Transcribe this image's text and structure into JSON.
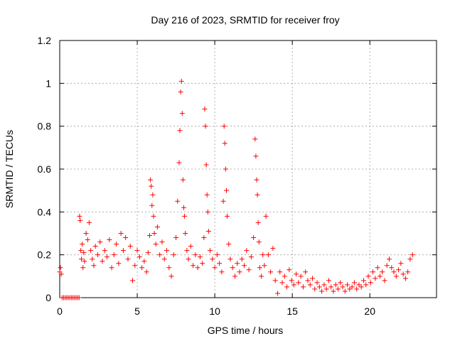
{
  "chart_data": {
    "type": "scatter",
    "title": "Day 216 of 2023, SRMTID for receiver froy",
    "xlabel": "GPS time / hours",
    "ylabel": "SRMTID / TECUs",
    "xlim": [
      0,
      24.3
    ],
    "ylim": [
      0,
      1.2
    ],
    "xticks": [
      0,
      5,
      10,
      15,
      20
    ],
    "xtick_labels": [
      "0",
      "5",
      "10",
      "15",
      "20"
    ],
    "yticks": [
      0,
      0.2,
      0.4,
      0.6,
      0.8,
      1.0,
      1.2
    ],
    "ytick_labels": [
      "0",
      "0.2",
      "0.4",
      "0.6",
      "0.8",
      "1",
      "1.2"
    ],
    "grid": true,
    "marker": "+",
    "series_color": "#ff0000",
    "series": [
      {
        "name": "SRMTID",
        "x": [
          0.0,
          0.05,
          0.1,
          0.15,
          0.25,
          0.35,
          0.45,
          0.55,
          0.65,
          0.75,
          0.85,
          0.95,
          1.05,
          1.15,
          1.25,
          1.28,
          1.32,
          1.36,
          1.4,
          1.45,
          1.5,
          1.55,
          1.6,
          1.7,
          1.8,
          1.9,
          2.0,
          2.1,
          2.2,
          2.3,
          2.45,
          2.6,
          2.75,
          2.9,
          3.05,
          3.2,
          3.35,
          3.5,
          3.65,
          3.8,
          3.95,
          4.1,
          4.25,
          4.4,
          4.55,
          4.7,
          4.85,
          5.0,
          5.15,
          5.3,
          5.45,
          5.6,
          5.7,
          5.8,
          5.85,
          5.9,
          5.95,
          6.0,
          6.05,
          6.1,
          6.2,
          6.3,
          6.45,
          6.6,
          6.75,
          6.9,
          7.05,
          7.2,
          7.35,
          7.5,
          7.6,
          7.7,
          7.75,
          7.8,
          7.85,
          7.9,
          7.95,
          8.0,
          8.05,
          8.1,
          8.2,
          8.3,
          8.45,
          8.6,
          8.75,
          8.9,
          9.05,
          9.2,
          9.3,
          9.35,
          9.4,
          9.45,
          9.5,
          9.55,
          9.6,
          9.7,
          9.85,
          10.0,
          10.15,
          10.3,
          10.45,
          10.55,
          10.6,
          10.65,
          10.7,
          10.75,
          10.8,
          10.9,
          11.0,
          11.15,
          11.3,
          11.45,
          11.6,
          11.75,
          11.9,
          12.05,
          12.2,
          12.35,
          12.5,
          12.6,
          12.65,
          12.7,
          12.75,
          12.8,
          12.85,
          12.9,
          13.0,
          13.1,
          13.2,
          13.3,
          13.45,
          13.6,
          13.75,
          13.9,
          14.05,
          14.2,
          14.35,
          14.5,
          14.65,
          14.8,
          14.95,
          15.1,
          15.25,
          15.4,
          15.55,
          15.7,
          15.85,
          16.0,
          16.15,
          16.3,
          16.45,
          16.6,
          16.75,
          16.9,
          17.05,
          17.2,
          17.35,
          17.5,
          17.65,
          17.8,
          17.95,
          18.1,
          18.25,
          18.4,
          18.55,
          18.7,
          18.85,
          19.0,
          19.15,
          19.3,
          19.45,
          19.6,
          19.75,
          19.9,
          20.05,
          20.2,
          20.35,
          20.5,
          20.65,
          20.8,
          20.95,
          21.1,
          21.25,
          21.4,
          21.55,
          21.7,
          21.85,
          22.0,
          22.15,
          22.3,
          22.45,
          22.6,
          22.75
        ],
        "y": [
          0.12,
          0.14,
          0.11,
          0.0,
          0.0,
          0.0,
          0.0,
          0.0,
          0.0,
          0.0,
          0.0,
          0.0,
          0.0,
          0.0,
          0.0,
          0.38,
          0.36,
          0.22,
          0.18,
          0.25,
          0.14,
          0.21,
          0.17,
          0.3,
          0.27,
          0.35,
          0.22,
          0.18,
          0.15,
          0.24,
          0.2,
          0.26,
          0.17,
          0.22,
          0.19,
          0.27,
          0.14,
          0.2,
          0.25,
          0.16,
          0.3,
          0.22,
          0.28,
          0.18,
          0.24,
          0.08,
          0.15,
          0.22,
          0.19,
          0.14,
          0.17,
          0.12,
          0.21,
          0.29,
          0.55,
          0.52,
          0.43,
          0.48,
          0.38,
          0.3,
          0.25,
          0.33,
          0.2,
          0.26,
          0.18,
          0.22,
          0.14,
          0.1,
          0.2,
          0.28,
          0.45,
          0.63,
          0.78,
          0.96,
          1.01,
          0.86,
          0.55,
          0.42,
          0.38,
          0.3,
          0.22,
          0.18,
          0.24,
          0.15,
          0.2,
          0.14,
          0.19,
          0.16,
          0.28,
          0.88,
          0.8,
          0.62,
          0.48,
          0.4,
          0.31,
          0.22,
          0.18,
          0.14,
          0.2,
          0.16,
          0.12,
          0.45,
          0.8,
          0.72,
          0.6,
          0.5,
          0.38,
          0.25,
          0.18,
          0.14,
          0.1,
          0.16,
          0.12,
          0.18,
          0.15,
          0.22,
          0.13,
          0.19,
          0.28,
          0.74,
          0.66,
          0.55,
          0.48,
          0.35,
          0.26,
          0.14,
          0.1,
          0.2,
          0.15,
          0.38,
          0.2,
          0.12,
          0.23,
          0.08,
          0.02,
          0.12,
          0.07,
          0.1,
          0.05,
          0.13,
          0.08,
          0.06,
          0.11,
          0.07,
          0.1,
          0.05,
          0.12,
          0.08,
          0.06,
          0.09,
          0.04,
          0.07,
          0.05,
          0.03,
          0.06,
          0.04,
          0.08,
          0.05,
          0.03,
          0.06,
          0.04,
          0.07,
          0.05,
          0.03,
          0.06,
          0.04,
          0.05,
          0.07,
          0.04,
          0.06,
          0.05,
          0.08,
          0.06,
          0.1,
          0.07,
          0.12,
          0.09,
          0.14,
          0.1,
          0.12,
          0.08,
          0.15,
          0.18,
          0.14,
          0.12,
          0.1,
          0.13,
          0.16,
          0.11,
          0.09,
          0.12,
          0.18,
          0.2
        ]
      }
    ]
  }
}
